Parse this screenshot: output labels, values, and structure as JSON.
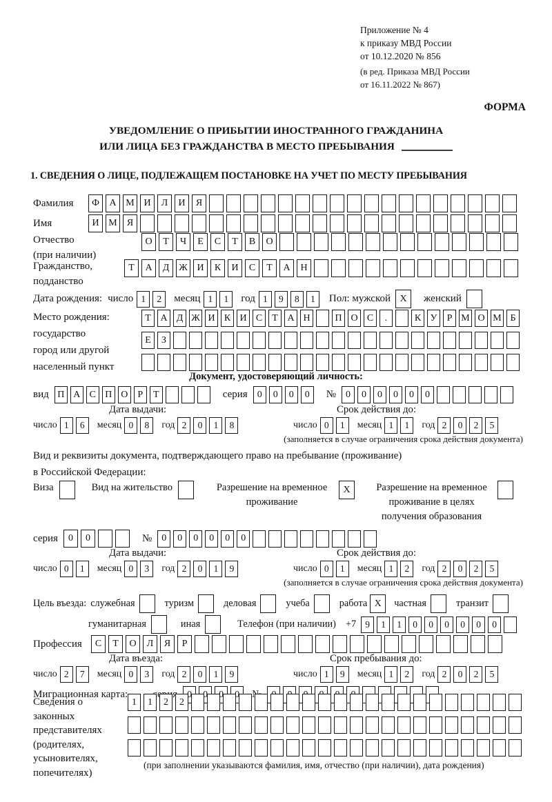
{
  "colors": {
    "ink": "#141414",
    "paper": "#ffffff"
  },
  "ref": {
    "line1": "Приложение № 4",
    "line2": "к приказу МВД России",
    "line3": "от 10.12.2020 № 856",
    "line4": "(в ред. Приказа МВД России",
    "line5": "от 16.11.2022 № 867)",
    "form_label": "ФОРМА"
  },
  "title": {
    "line1": "УВЕДОМЛЕНИЕ О ПРИБЫТИИ ИНОСТРАННОГО ГРАЖДАНИНА",
    "line2": "ИЛИ ЛИЦА БЕЗ ГРАЖДАНСТВА В МЕСТО ПРЕБЫВАНИЯ"
  },
  "section1": "1. СВЕДЕНИЯ О ЛИЦЕ, ПОДЛЕЖАЩЕМ ПОСТАНОВКЕ НА УЧЕТ ПО МЕСТУ ПРЕБЫВАНИЯ",
  "labels": {
    "surname": "Фамилия",
    "name": "Имя",
    "patronymic": "Отчество",
    "patronymic_note": "(при наличии)",
    "citizenship1": "Гражданство,",
    "citizenship2": "подданство",
    "birth_date": "Дата рождения:",
    "day": "число",
    "month": "месяц",
    "year": "год",
    "sex": "Пол: мужской",
    "female": "женский",
    "birthplace1": "Место рождения:",
    "birthplace2": "государство",
    "birthplace3": "город или другой",
    "birthplace4": "населенный пункт",
    "id_doc_heading": "Документ, удостоверяющий личность:",
    "doc_type": "вид",
    "series": "серия",
    "number": "№",
    "issue_date": "Дата выдачи:",
    "valid_until": "Срок действия до:",
    "valid_note": "(заполняется в случае ограничения срока действия документа)",
    "right_doc1": "Вид и реквизиты документа, подтверждающего право на пребывание (проживание)",
    "right_doc2": "в Российской Федерации:",
    "visa": "Виза",
    "residence_permit": "Вид на жительство",
    "temp_res1": "Разрешение на временное",
    "temp_res2": "проживание",
    "temp_res_edu2": "проживание в целях",
    "temp_res_edu3": "получения образования",
    "purpose": "Цель въезда:",
    "p_official": "служебная",
    "p_tourism": "туризм",
    "p_business": "деловая",
    "p_study": "учеба",
    "p_work": "работа",
    "p_private": "частная",
    "p_transit": "транзит",
    "p_humanitarian": "гуманитарная",
    "p_other": "иная",
    "phone": "Телефон (при наличии)",
    "phone_prefix": "+7",
    "profession": "Профессия",
    "entry_date": "Дата въезда:",
    "stay_until": "Срок пребывания до:",
    "migration_card": "Миграционная карта:",
    "reps1": "Сведения о",
    "reps2": "законных",
    "reps3": "представителях",
    "reps4": "(родителях,",
    "reps5": "усыновителях,",
    "reps6": "попечителях)",
    "reps_note": "(при заполнении указываются фамилия, имя, отчество (при наличии), дата рождения)"
  },
  "cells": {
    "surname": {
      "text": "ФАМИЛИЯ",
      "n": 25
    },
    "name": {
      "text": "ИМЯ",
      "n": 25
    },
    "patronymic": {
      "text": "ОТЧЕСТВО",
      "n": 22
    },
    "citizenship": {
      "text": "ТАДЖИКИСТАН",
      "n": 23
    },
    "birth_day": {
      "text": "12",
      "n": 2
    },
    "birth_month": {
      "text": "11",
      "n": 2
    },
    "birth_year": {
      "text": "1981",
      "n": 4
    },
    "sex_male": {
      "text": "X",
      "n": 1
    },
    "sex_female": {
      "text": "",
      "n": 1
    },
    "birthplace_row1": {
      "text": "ТАДЖИКИСТАН ПОС. КУРМОМБ",
      "n": 24
    },
    "birthplace_row2": {
      "text": "ЕЗ",
      "n": 24
    },
    "birthplace_row3": {
      "text": "",
      "n": 24
    },
    "doc_type": {
      "text": "ПАСПОРТ",
      "n": 10
    },
    "doc_series": {
      "text": "0000",
      "n": 4
    },
    "doc_number": {
      "text": "000000",
      "n": 11
    },
    "doc_issue_day": {
      "text": "16",
      "n": 2
    },
    "doc_issue_month": {
      "text": "08",
      "n": 2
    },
    "doc_issue_year": {
      "text": "2018",
      "n": 4
    },
    "doc_valid_day": {
      "text": "01",
      "n": 2
    },
    "doc_valid_month": {
      "text": "11",
      "n": 2
    },
    "doc_valid_year": {
      "text": "2025",
      "n": 4
    },
    "cb_visa": {
      "text": "",
      "n": 1
    },
    "cb_residence": {
      "text": "",
      "n": 1
    },
    "cb_temp_res": {
      "text": "X",
      "n": 1
    },
    "cb_temp_res_edu": {
      "text": "",
      "n": 1
    },
    "permit_series": {
      "text": "00",
      "n": 4
    },
    "permit_number": {
      "text": "000000",
      "n": 14
    },
    "permit_issue_day": {
      "text": "01",
      "n": 2
    },
    "permit_issue_month": {
      "text": "03",
      "n": 2
    },
    "permit_issue_year": {
      "text": "2019",
      "n": 4
    },
    "permit_valid_day": {
      "text": "01",
      "n": 2
    },
    "permit_valid_month": {
      "text": "12",
      "n": 2
    },
    "permit_valid_year": {
      "text": "2025",
      "n": 4
    },
    "cb_official": {
      "text": "",
      "n": 1
    },
    "cb_tourism": {
      "text": "",
      "n": 1
    },
    "cb_business": {
      "text": "",
      "n": 1
    },
    "cb_study": {
      "text": "",
      "n": 1
    },
    "cb_work": {
      "text": "X",
      "n": 1
    },
    "cb_private": {
      "text": "",
      "n": 1
    },
    "cb_transit": {
      "text": "",
      "n": 1
    },
    "cb_humanitarian": {
      "text": "",
      "n": 1
    },
    "cb_other": {
      "text": "",
      "n": 1
    },
    "phone": {
      "text": "911000000",
      "n": 10
    },
    "profession": {
      "text": "СТОЛЯР",
      "n": 24
    },
    "entry_day": {
      "text": "27",
      "n": 2
    },
    "entry_month": {
      "text": "03",
      "n": 2
    },
    "entry_year": {
      "text": "2019",
      "n": 4
    },
    "stay_day": {
      "text": "19",
      "n": 2
    },
    "stay_month": {
      "text": "12",
      "n": 2
    },
    "stay_year": {
      "text": "2025",
      "n": 4
    },
    "mig_series": {
      "text": "0000",
      "n": 4
    },
    "mig_number": {
      "text": "000000",
      "n": 11
    },
    "rep_row1": {
      "text": "1122",
      "n": 25
    },
    "rep_row2": {
      "text": "",
      "n": 25
    },
    "rep_row3": {
      "text": "",
      "n": 25
    }
  }
}
